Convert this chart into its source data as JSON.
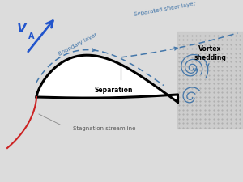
{
  "bg_color": "#dcdcdc",
  "sail_color": "#000000",
  "sail_lw": 2.2,
  "boundary_layer_color": "#4477aa",
  "stagnation_color": "#cc2222",
  "arrow_color": "#4477aa",
  "va_color": "#2255cc",
  "labels": {
    "VA": "V",
    "VA_sub": "A",
    "boundary_layer": "Boundary layer",
    "shear_layer": "Separated shear layer",
    "separation": "Separation",
    "stagnation": "Stagnation streamline",
    "vortex": "Vortex\nshedding"
  }
}
